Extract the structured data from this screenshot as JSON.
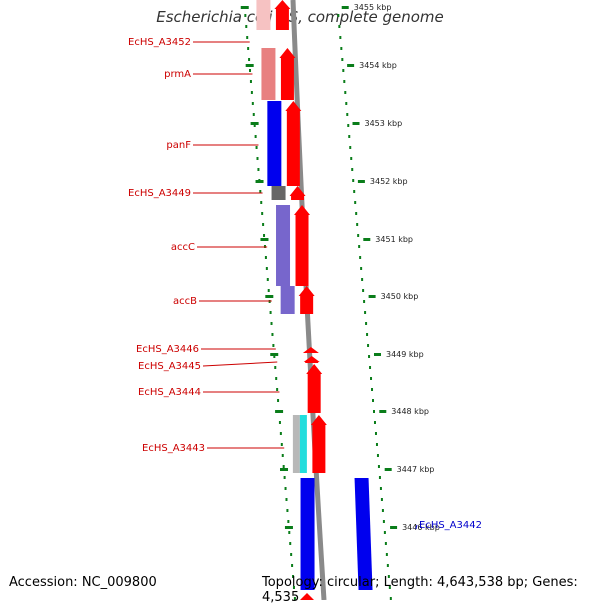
{
  "title": "Escherichia coli HS, complete genome",
  "footer": {
    "accession": "Accession: NC_009800",
    "topology": "Topology: circular; Length: 4,643,538 bp; Genes: 4,535"
  },
  "colors": {
    "gene_label": "#cc0000",
    "gene_label_alt": "#0000cc",
    "tick_green": "#0a7d1a",
    "backbone": "#8a8a8a",
    "forward_arrow": "#ff0000"
  },
  "scale": [
    {
      "label": "3455 kbp"
    },
    {
      "label": "3454 kbp"
    },
    {
      "label": "3453 kbp"
    },
    {
      "label": "3452 kbp"
    },
    {
      "label": "3451 kbp"
    },
    {
      "label": "3450 kbp"
    },
    {
      "label": "3449 kbp"
    },
    {
      "label": "3448 kbp"
    },
    {
      "label": "3447 kbp"
    },
    {
      "label": "3446 kbp"
    }
  ],
  "genes": [
    {
      "name": "EcHS_A3452",
      "strand": "forward",
      "cog_color": "#f6c2c2"
    },
    {
      "name": "prmA",
      "strand": "forward",
      "cog_color": "#e88080"
    },
    {
      "name": "panF",
      "strand": "forward",
      "cog_color": "#0000ee"
    },
    {
      "name": "EcHS_A3449",
      "strand": "forward",
      "cog_color": "#666666"
    },
    {
      "name": "accC",
      "strand": "forward",
      "cog_color": "#7766cc"
    },
    {
      "name": "accB",
      "strand": "forward",
      "cog_color": "#7766cc"
    },
    {
      "name": "EcHS_A3446",
      "strand": "forward",
      "cog_color": ""
    },
    {
      "name": "EcHS_A3445",
      "strand": "forward",
      "cog_color": ""
    },
    {
      "name": "EcHS_A3444",
      "strand": "forward",
      "cog_color": ""
    },
    {
      "name": "EcHS_A3443",
      "strand": "forward",
      "cog_color": "#b8b8b8|#22dddd"
    },
    {
      "name": "EcHS_A3442",
      "strand": "reverse",
      "cog_color": "#0000ee"
    }
  ]
}
